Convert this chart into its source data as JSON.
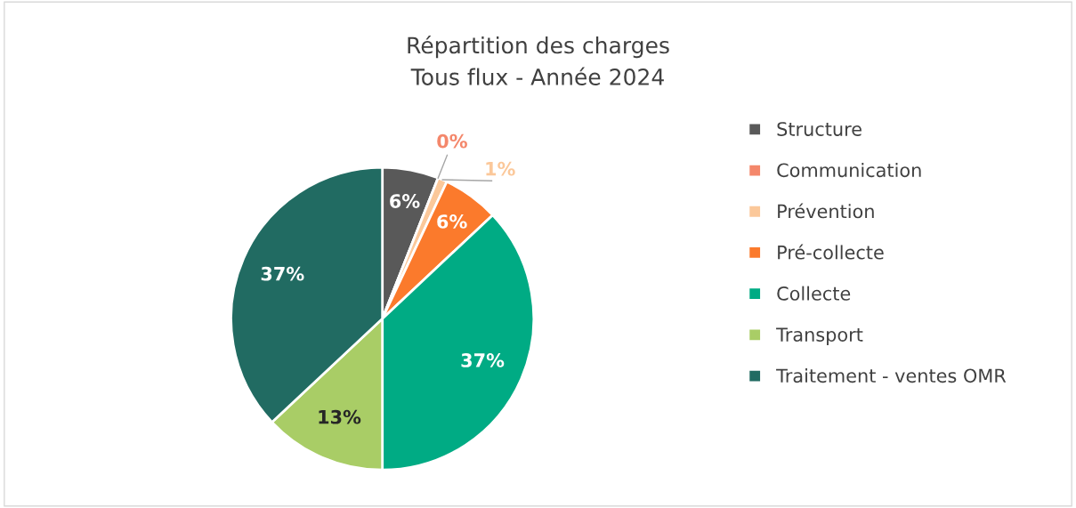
{
  "chart_data": {
    "type": "pie",
    "title": "Répartition des charges\nTous flux - Année 2024",
    "categories": [
      "Structure",
      "Communication",
      "Prévention",
      "Pré-collecte",
      "Collecte",
      "Transport",
      "Traitement - ventes OMR"
    ],
    "values": [
      6,
      0,
      1,
      6,
      37,
      13,
      37
    ],
    "colors": [
      "#595959",
      "#f4876b",
      "#fbc89a",
      "#fb7a2c",
      "#00ab84",
      "#a9cd66",
      "#216b62"
    ],
    "value_labels": [
      "6%",
      "0%",
      "1%",
      "6%",
      "37%",
      "13%",
      "37%"
    ],
    "legend": "right"
  }
}
